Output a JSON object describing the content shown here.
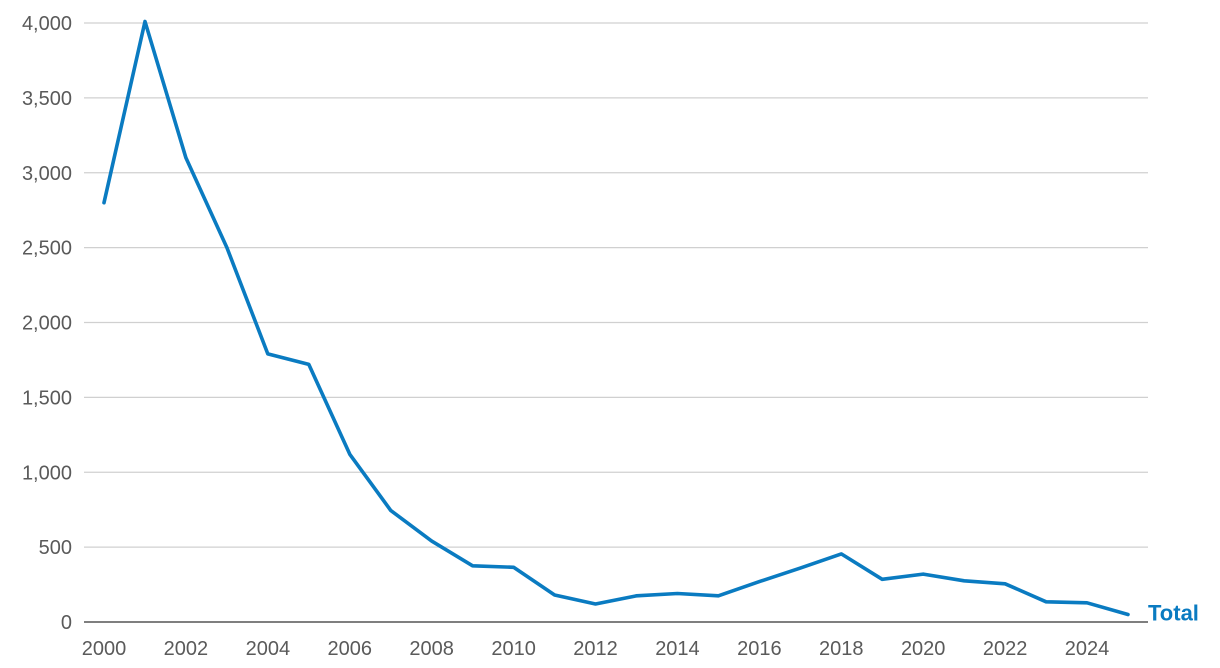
{
  "chart_data": {
    "type": "line",
    "title": "",
    "xlabel": "",
    "ylabel": "",
    "x": [
      2000,
      2001,
      2002,
      2003,
      2004,
      2005,
      2006,
      2007,
      2008,
      2009,
      2010,
      2011,
      2012,
      2013,
      2014,
      2015,
      2016,
      2017,
      2018,
      2019,
      2020,
      2021,
      2022,
      2023,
      2024,
      2025
    ],
    "xticks": [
      "2000",
      "2002",
      "2004",
      "2006",
      "2008",
      "2010",
      "2012",
      "2014",
      "2016",
      "2018",
      "2020",
      "2022",
      "2024"
    ],
    "yticks": [
      "0",
      "500",
      "1,000",
      "1,500",
      "2,000",
      "2,500",
      "3,000",
      "3,500",
      "4,000"
    ],
    "ylim": [
      0,
      4000
    ],
    "xlim": [
      2000,
      2025
    ],
    "grid": true,
    "series": [
      {
        "name": "Total",
        "color": "#0a7bc1",
        "values": [
          2800,
          4010,
          3100,
          2500,
          1790,
          1720,
          1120,
          745,
          540,
          375,
          365,
          180,
          120,
          175,
          190,
          175,
          270,
          360,
          455,
          285,
          320,
          275,
          255,
          135,
          128,
          50
        ]
      }
    ]
  }
}
